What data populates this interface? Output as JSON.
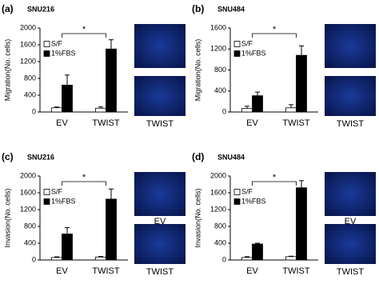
{
  "chart_data": [
    {
      "type": "bar",
      "panel": "(a)",
      "title": "SNU216",
      "ylabel": "Migration(No. cells)",
      "annotation": "*",
      "categories": [
        "EV",
        "TWIST"
      ],
      "series": [
        {
          "name": "S/F",
          "color": "#ffffff",
          "values": [
            100,
            90
          ],
          "errors": [
            20,
            30
          ]
        },
        {
          "name": "1%FBS",
          "color": "#000000",
          "values": [
            640,
            1500
          ],
          "errors": [
            240,
            220
          ]
        }
      ],
      "ylim": [
        0,
        2000
      ],
      "yticks": [
        0,
        400,
        800,
        1200,
        1600,
        2000
      ],
      "image_labels": [
        "TWIST"
      ]
    },
    {
      "type": "bar",
      "panel": "(b)",
      "title": "SNU484",
      "ylabel": "Migration(No. cells)",
      "annotation": "*",
      "categories": [
        "EV",
        "TWIST"
      ],
      "series": [
        {
          "name": "S/F",
          "color": "#ffffff",
          "values": [
            70,
            80
          ],
          "errors": [
            40,
            60
          ]
        },
        {
          "name": "1%FBS",
          "color": "#000000",
          "values": [
            310,
            1080
          ],
          "errors": [
            70,
            180
          ]
        }
      ],
      "ylim": [
        0,
        1600
      ],
      "yticks": [
        0,
        400,
        800,
        1200,
        1600
      ],
      "image_labels": [
        "TWIST"
      ]
    },
    {
      "type": "bar",
      "panel": "(c)",
      "title": "SNU216",
      "ylabel": "Invasion(No. cells)",
      "annotation": "*",
      "categories": [
        "EV",
        "TWIST"
      ],
      "series": [
        {
          "name": "S/F",
          "color": "#ffffff",
          "values": [
            60,
            70
          ],
          "errors": [
            15,
            15
          ]
        },
        {
          "name": "1%FBS",
          "color": "#000000",
          "values": [
            620,
            1450
          ],
          "errors": [
            150,
            240
          ]
        }
      ],
      "ylim": [
        0,
        2000
      ],
      "yticks": [
        0,
        400,
        800,
        1200,
        1600,
        2000
      ],
      "image_labels": [
        "EV",
        "TWIST"
      ]
    },
    {
      "type": "bar",
      "panel": "(d)",
      "title": "SNU484",
      "ylabel": "Invasion(No. cells)",
      "annotation": "*",
      "categories": [
        "EV",
        "TWIST"
      ],
      "series": [
        {
          "name": "S/F",
          "color": "#ffffff",
          "values": [
            60,
            80
          ],
          "errors": [
            20,
            10
          ]
        },
        {
          "name": "1%FBS",
          "color": "#000000",
          "values": [
            380,
            1720
          ],
          "errors": [
            20,
            170
          ]
        }
      ],
      "ylim": [
        0,
        2000
      ],
      "yticks": [
        0,
        400,
        800,
        1200,
        1600,
        2000
      ],
      "image_labels": [
        "EV",
        "TWIST"
      ]
    }
  ]
}
